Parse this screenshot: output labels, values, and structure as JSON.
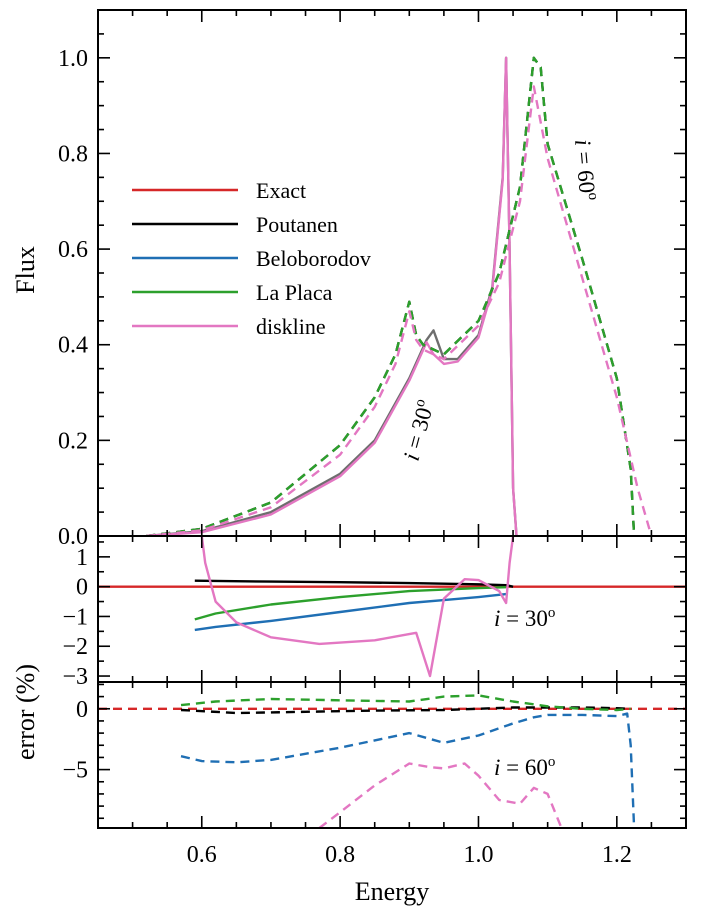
{
  "figure": {
    "xlabel": "Energy",
    "ylabel_top": "Flux",
    "ylabel_bottom": "error (%)"
  },
  "legend": {
    "placement": "upper-left",
    "entries": [
      {
        "label": "Exact",
        "color": "#d62728",
        "dash": "solid"
      },
      {
        "label": "Poutanen",
        "color": "#000000",
        "dash": "solid"
      },
      {
        "label": "Beloborodov",
        "color": "#1f6fb4",
        "dash": "solid"
      },
      {
        "label": "La Placa",
        "color": "#2ca02c",
        "dash": "solid"
      },
      {
        "label": "diskline",
        "color": "#e377c2",
        "dash": "solid"
      }
    ]
  },
  "annotations": {
    "top_30": {
      "prefix": "i",
      "text": " = 30",
      "sup": "o"
    },
    "top_60": {
      "prefix": "i",
      "text": " = 60",
      "sup": "o"
    },
    "mid_30": {
      "prefix": "i",
      "text": " = 30",
      "sup": "o"
    },
    "bot_60": {
      "prefix": "i",
      "text": " = 60",
      "sup": "o"
    }
  },
  "chart_data": [
    {
      "type": "line",
      "panel": "flux",
      "xlim": [
        0.45,
        1.3
      ],
      "ylim": [
        0.0,
        1.1
      ],
      "xticks": [
        0.6,
        0.8,
        1.0,
        1.2
      ],
      "yticks": [
        0.0,
        0.2,
        0.4,
        0.6,
        0.8,
        1.0
      ],
      "ytick_labels": [
        "0.0",
        "0.2",
        "0.4",
        "0.6",
        "0.8",
        "1.0"
      ],
      "series": [
        {
          "key": "i30_solid",
          "color": "#6e6e6e",
          "dash": "solid",
          "x": [
            0.52,
            0.6,
            0.7,
            0.8,
            0.85,
            0.9,
            0.925,
            0.935,
            0.95,
            0.97,
            1.0,
            1.02,
            1.035,
            1.04,
            1.045,
            1.05,
            1.055
          ],
          "y": [
            0.0,
            0.01,
            0.05,
            0.13,
            0.2,
            0.33,
            0.41,
            0.43,
            0.37,
            0.37,
            0.42,
            0.52,
            0.75,
            1.0,
            0.6,
            0.1,
            0.0
          ]
        },
        {
          "key": "i30_pink",
          "color": "#e377c2",
          "dash": "solid",
          "x": [
            0.52,
            0.6,
            0.7,
            0.8,
            0.85,
            0.9,
            0.925,
            0.935,
            0.95,
            0.97,
            1.0,
            1.02,
            1.035,
            1.04,
            1.045,
            1.05,
            1.055
          ],
          "y": [
            0.0,
            0.008,
            0.045,
            0.125,
            0.195,
            0.325,
            0.405,
            0.38,
            0.36,
            0.365,
            0.415,
            0.515,
            0.745,
            1.0,
            0.6,
            0.1,
            0.0
          ]
        },
        {
          "key": "i60_black",
          "color": "#000000",
          "dash": "dashed",
          "x": [
            0.52,
            0.6,
            0.7,
            0.8,
            0.85,
            0.88,
            0.9,
            0.91,
            0.92,
            0.95,
            1.0,
            1.03,
            1.06,
            1.08,
            1.09,
            1.1,
            1.15,
            1.2,
            1.22,
            1.225
          ],
          "y": [
            0.0,
            0.015,
            0.07,
            0.19,
            0.29,
            0.38,
            0.49,
            0.42,
            0.4,
            0.38,
            0.45,
            0.55,
            0.73,
            1.0,
            0.98,
            0.82,
            0.58,
            0.33,
            0.14,
            0.0
          ]
        },
        {
          "key": "i60_green",
          "color": "#2ca02c",
          "dash": "dashed",
          "x": [
            0.52,
            0.6,
            0.7,
            0.8,
            0.85,
            0.88,
            0.9,
            0.91,
            0.92,
            0.95,
            1.0,
            1.03,
            1.06,
            1.08,
            1.09,
            1.1,
            1.15,
            1.2,
            1.22,
            1.225
          ],
          "y": [
            0.0,
            0.015,
            0.07,
            0.19,
            0.29,
            0.38,
            0.49,
            0.42,
            0.4,
            0.38,
            0.45,
            0.55,
            0.73,
            1.0,
            0.98,
            0.82,
            0.58,
            0.33,
            0.14,
            0.0
          ]
        },
        {
          "key": "i60_pink",
          "color": "#e377c2",
          "dash": "dashed",
          "x": [
            0.52,
            0.6,
            0.7,
            0.8,
            0.85,
            0.88,
            0.9,
            0.91,
            0.92,
            0.95,
            1.0,
            1.03,
            1.06,
            1.08,
            1.1,
            1.15,
            1.2,
            1.23,
            1.25
          ],
          "y": [
            0.0,
            0.012,
            0.06,
            0.17,
            0.27,
            0.36,
            0.47,
            0.41,
            0.39,
            0.37,
            0.44,
            0.53,
            0.7,
            0.94,
            0.79,
            0.54,
            0.29,
            0.1,
            0.0
          ]
        }
      ]
    },
    {
      "type": "line",
      "panel": "error_30",
      "xlim": [
        0.45,
        1.3
      ],
      "ylim": [
        -3.2,
        1.7
      ],
      "yticks": [
        1,
        0,
        -1,
        -2,
        -3
      ],
      "ytick_labels": [
        "1",
        "0",
        "−1",
        "−2",
        "−3"
      ],
      "series": [
        {
          "key": "exact",
          "color": "#d62728",
          "dash": "solid",
          "x": [
            0.45,
            1.3
          ],
          "y": [
            0,
            0
          ]
        },
        {
          "key": "poutanen",
          "color": "#000000",
          "dash": "solid",
          "x": [
            0.59,
            0.7,
            0.8,
            0.9,
            0.95,
            1.0,
            1.04,
            1.05
          ],
          "y": [
            0.2,
            0.17,
            0.15,
            0.12,
            0.1,
            0.08,
            0.05,
            0.0
          ]
        },
        {
          "key": "beloborodov",
          "color": "#1f6fb4",
          "dash": "solid",
          "x": [
            0.59,
            0.62,
            0.7,
            0.8,
            0.9,
            0.95,
            1.0,
            1.04
          ],
          "y": [
            -1.45,
            -1.35,
            -1.15,
            -0.85,
            -0.55,
            -0.45,
            -0.35,
            -0.25
          ]
        },
        {
          "key": "la_placa",
          "color": "#2ca02c",
          "dash": "solid",
          "x": [
            0.59,
            0.62,
            0.7,
            0.8,
            0.9,
            0.95,
            1.0,
            1.04
          ],
          "y": [
            -1.1,
            -0.9,
            -0.6,
            -0.35,
            -0.15,
            -0.1,
            -0.05,
            -0.02
          ]
        },
        {
          "key": "diskline",
          "color": "#e377c2",
          "dash": "solid",
          "x": [
            0.6,
            0.605,
            0.62,
            0.65,
            0.7,
            0.77,
            0.85,
            0.91,
            0.93,
            0.95,
            0.98,
            1.0,
            1.03,
            1.04,
            1.045,
            1.05
          ],
          "y": [
            1.7,
            0.8,
            -0.5,
            -1.2,
            -1.7,
            -1.92,
            -1.8,
            -1.55,
            -3.0,
            -0.4,
            0.25,
            0.22,
            -0.15,
            -0.55,
            0.8,
            1.7
          ]
        }
      ]
    },
    {
      "type": "line",
      "panel": "error_60",
      "xlim": [
        0.45,
        1.3
      ],
      "ylim": [
        -9.8,
        2.2
      ],
      "yticks": [
        0,
        -5
      ],
      "ytick_labels": [
        "0",
        "−5"
      ],
      "series": [
        {
          "key": "exact",
          "color": "#d62728",
          "dash": "dashed",
          "x": [
            0.45,
            1.3
          ],
          "y": [
            0,
            0
          ]
        },
        {
          "key": "poutanen",
          "color": "#000000",
          "dash": "dashed",
          "x": [
            0.57,
            0.65,
            0.75,
            0.85,
            0.95,
            1.05,
            1.15,
            1.2,
            1.22
          ],
          "y": [
            -0.1,
            -0.35,
            -0.25,
            -0.15,
            -0.1,
            0.1,
            0.1,
            0.05,
            0.0
          ]
        },
        {
          "key": "beloborodov",
          "color": "#1f6fb4",
          "dash": "dashed",
          "x": [
            0.57,
            0.6,
            0.65,
            0.7,
            0.8,
            0.85,
            0.9,
            0.95,
            1.0,
            1.05,
            1.08,
            1.1,
            1.15,
            1.2,
            1.215,
            1.22,
            1.225
          ],
          "y": [
            -3.9,
            -4.3,
            -4.4,
            -4.2,
            -3.2,
            -2.6,
            -2.0,
            -2.8,
            -2.2,
            -1.2,
            -0.7,
            -0.5,
            -0.5,
            -0.6,
            -0.4,
            -3.0,
            -9.8
          ]
        },
        {
          "key": "la_placa",
          "color": "#2ca02c",
          "dash": "dashed",
          "x": [
            0.57,
            0.62,
            0.7,
            0.8,
            0.9,
            0.95,
            1.0,
            1.05,
            1.1,
            1.15,
            1.2,
            1.22
          ],
          "y": [
            0.3,
            0.6,
            0.8,
            0.7,
            0.6,
            1.0,
            1.1,
            0.6,
            0.2,
            0.0,
            -0.1,
            0.0
          ]
        },
        {
          "key": "diskline",
          "color": "#e377c2",
          "dash": "dashed",
          "x": [
            0.77,
            0.8,
            0.85,
            0.9,
            0.93,
            0.95,
            0.98,
            1.0,
            1.03,
            1.06,
            1.08,
            1.1,
            1.12
          ],
          "y": [
            -9.8,
            -8.5,
            -6.3,
            -4.5,
            -4.8,
            -4.9,
            -4.5,
            -5.5,
            -7.5,
            -7.8,
            -6.5,
            -7.0,
            -9.8
          ]
        }
      ]
    }
  ]
}
